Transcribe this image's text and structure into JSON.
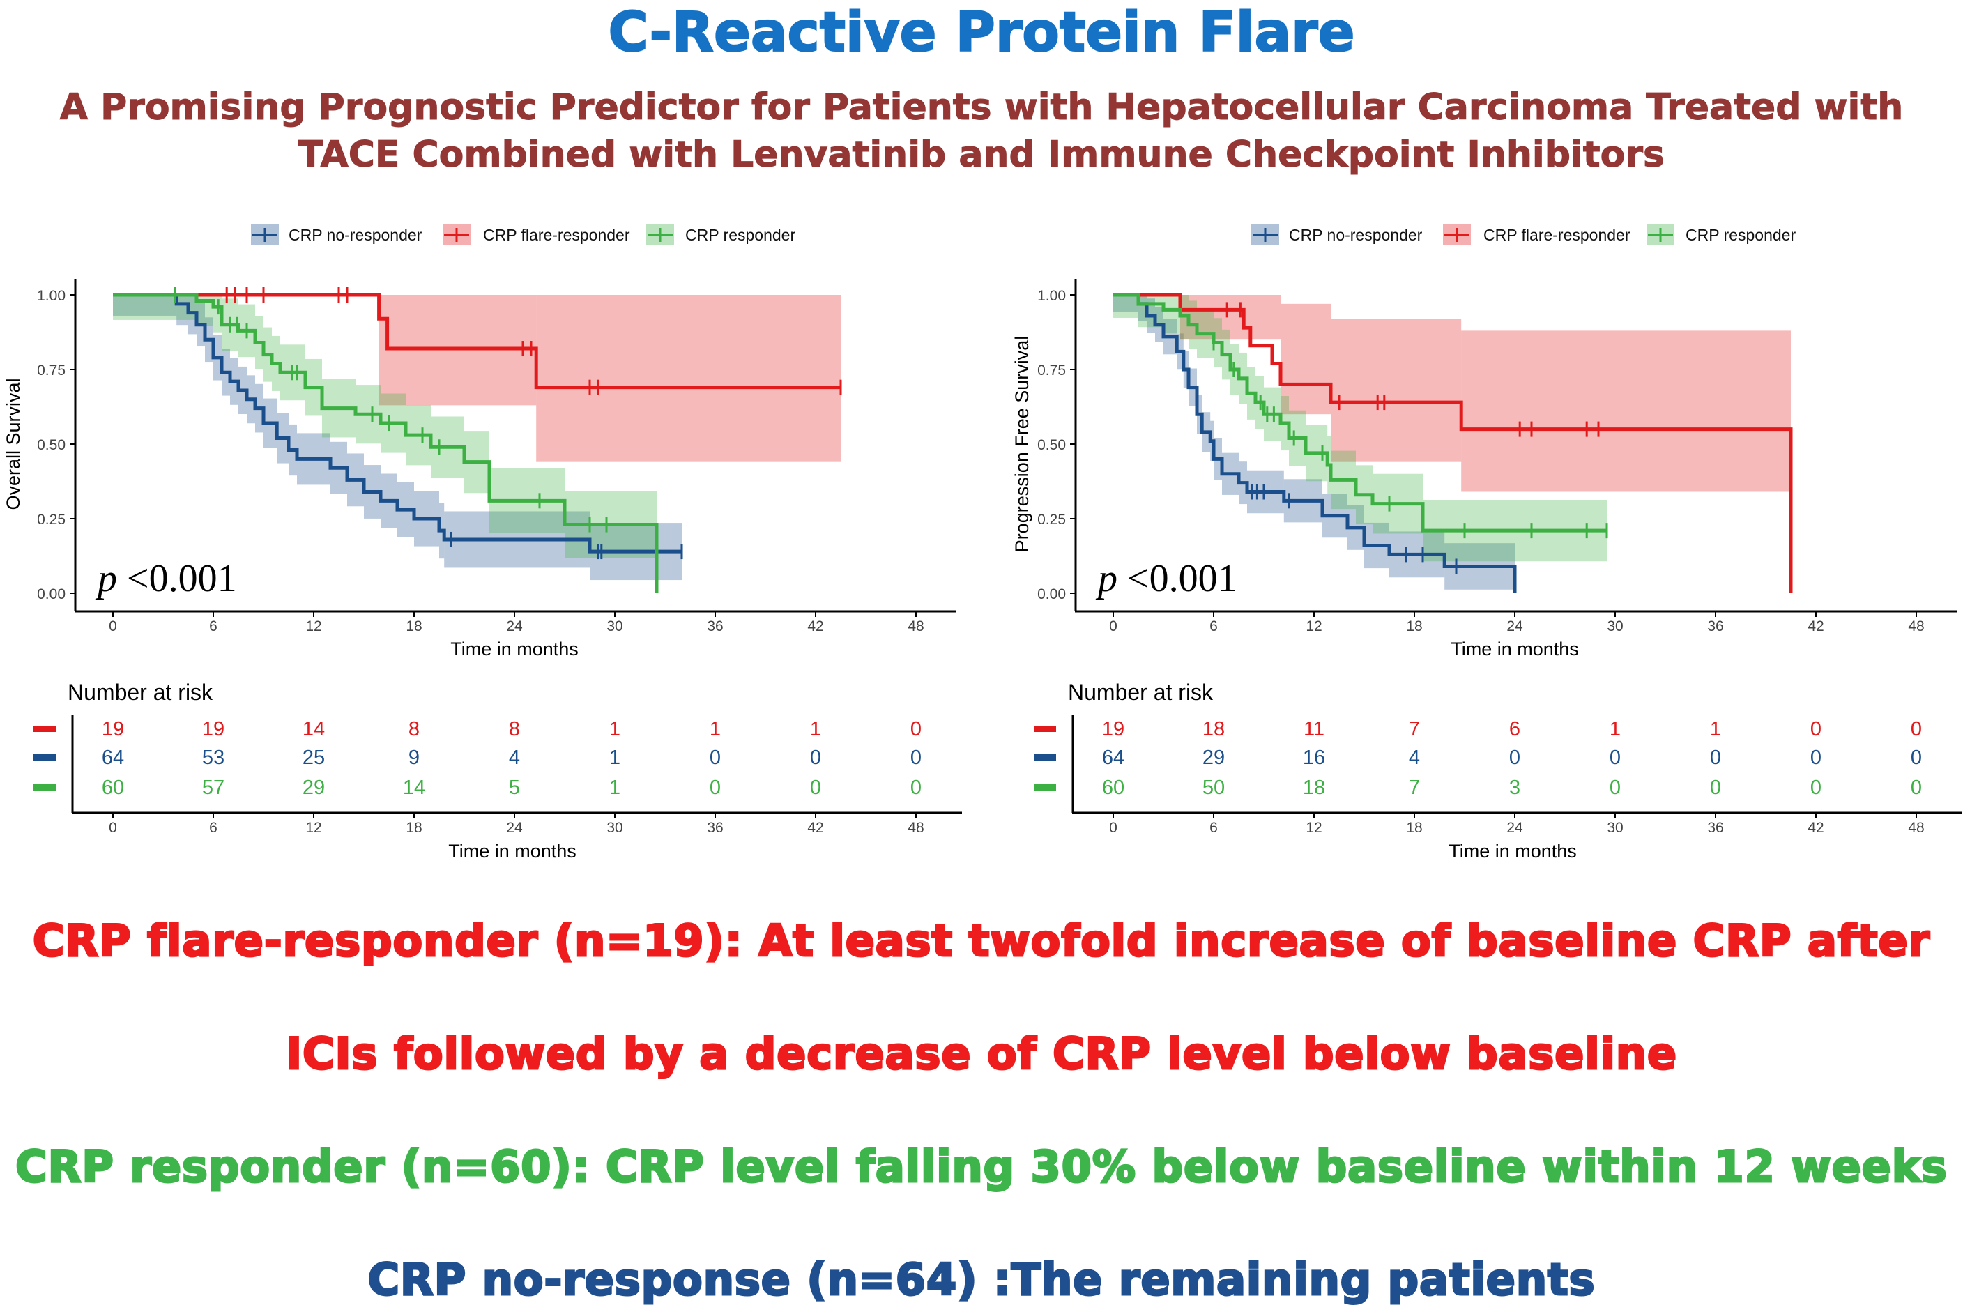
{
  "header": {
    "title": "C-Reactive Protein Flare",
    "subtitle_line1": "A Promising Prognostic Predictor for Patients with Hepatocellular Carcinoma  Treated with",
    "subtitle_line2": "TACE Combined with Lenvatinib and Immune Checkpoint Inhibitors"
  },
  "footer": {
    "line1": "CRP flare-responder (n=19): At least twofold increase of baseline CRP after",
    "line2": "ICIs  followed by a decrease of  CRP level below baseline",
    "line3": "CRP responder (n=60): CRP level falling 30% below baseline within 12 weeks",
    "line4": "CRP no-response (n=64) :The remaining patients"
  },
  "colors": {
    "flare": "#e31a1c",
    "no": "#1a4f8b",
    "resp": "#3cb043"
  },
  "chart_data": [
    {
      "type": "line",
      "subtype": "kaplan-meier",
      "ylabel": "Overall Survival",
      "xlabel": "Time in months",
      "xlim": [
        0,
        48
      ],
      "ylim": [
        0,
        1
      ],
      "xticks": [
        "0",
        "6",
        "12",
        "18",
        "24",
        "30",
        "36",
        "42",
        "48"
      ],
      "yticks": [
        "0.00",
        "0.25",
        "0.50",
        "0.75",
        "1.00"
      ],
      "p_label": "p",
      "p_value": "<0.001",
      "legend": [
        "CRP  no-responder",
        "CRP flare-responder",
        "CRP responder"
      ],
      "series": [
        {
          "name": "CRP  no-responder",
          "key": "no",
          "ci": 0.1,
          "end": 34,
          "steps": [
            [
              0,
              1
            ],
            [
              3.8,
              0.97
            ],
            [
              4.5,
              0.94
            ],
            [
              5,
              0.9
            ],
            [
              5.5,
              0.85
            ],
            [
              6,
              0.79
            ],
            [
              6.5,
              0.74
            ],
            [
              7,
              0.71
            ],
            [
              7.5,
              0.68
            ],
            [
              8,
              0.65
            ],
            [
              8.5,
              0.62
            ],
            [
              9,
              0.57
            ],
            [
              9.8,
              0.52
            ],
            [
              10.5,
              0.48
            ],
            [
              11,
              0.45
            ],
            [
              13,
              0.42
            ],
            [
              14,
              0.38
            ],
            [
              15,
              0.34
            ],
            [
              16,
              0.31
            ],
            [
              17,
              0.28
            ],
            [
              18,
              0.25
            ],
            [
              19.5,
              0.21
            ],
            [
              19.8,
              0.18
            ],
            [
              28.5,
              0.14
            ]
          ],
          "censored": [
            20.2,
            29,
            29.2,
            34
          ]
        },
        {
          "name": "CRP flare-responder",
          "key": "flare",
          "ci": 0.0,
          "end": 43.5,
          "steps": [
            [
              0,
              1
            ],
            [
              15.9,
              0.92
            ],
            [
              16.4,
              0.82
            ],
            [
              25.3,
              0.69
            ]
          ],
          "band": [
            [
              15.9,
              0.63,
              1
            ],
            [
              25.3,
              0.44,
              1
            ]
          ],
          "censored": [
            6.8,
            7.3,
            8,
            9,
            13.5,
            14,
            24.5,
            25,
            28.5,
            29,
            43.5
          ]
        },
        {
          "name": "CRP responder",
          "key": "resp",
          "ci": 0.12,
          "end": 32.5,
          "steps": [
            [
              0,
              1
            ],
            [
              5,
              0.98
            ],
            [
              6,
              0.96
            ],
            [
              6.5,
              0.9
            ],
            [
              7.5,
              0.88
            ],
            [
              8.5,
              0.84
            ],
            [
              9,
              0.8
            ],
            [
              9.5,
              0.77
            ],
            [
              10,
              0.74
            ],
            [
              11.5,
              0.69
            ],
            [
              12.5,
              0.62
            ],
            [
              14.5,
              0.6
            ],
            [
              16,
              0.57
            ],
            [
              17.5,
              0.53
            ],
            [
              19,
              0.49
            ],
            [
              21,
              0.44
            ],
            [
              22.5,
              0.31
            ],
            [
              27,
              0.23
            ],
            [
              32.5,
              0
            ]
          ],
          "censored": [
            3.7,
            6.3,
            7,
            7.4,
            8,
            10.7,
            11,
            15.5,
            16.5,
            18.5,
            19.5,
            25.5,
            28.5,
            29.5
          ]
        }
      ]
    },
    {
      "type": "line",
      "subtype": "kaplan-meier",
      "ylabel": "Progression Free Survival",
      "xlabel": "Time in months",
      "xlim": [
        0,
        48
      ],
      "ylim": [
        0,
        1
      ],
      "xticks": [
        "0",
        "6",
        "12",
        "18",
        "24",
        "30",
        "36",
        "42",
        "48"
      ],
      "yticks": [
        "0.00",
        "0.25",
        "0.50",
        "0.75",
        "1.00"
      ],
      "p_label": "p",
      "p_value": "<0.001",
      "legend": [
        "CRP  no-responder",
        "CRP flare-responder",
        "CRP responder"
      ],
      "series": [
        {
          "name": "CRP  no-responder",
          "key": "no",
          "ci": 0.08,
          "end": 24,
          "steps": [
            [
              0,
              1
            ],
            [
              1.5,
              0.97
            ],
            [
              2,
              0.93
            ],
            [
              2.5,
              0.9
            ],
            [
              3,
              0.86
            ],
            [
              3.8,
              0.81
            ],
            [
              4.2,
              0.75
            ],
            [
              4.5,
              0.69
            ],
            [
              5,
              0.6
            ],
            [
              5.3,
              0.54
            ],
            [
              5.8,
              0.51
            ],
            [
              6,
              0.45
            ],
            [
              6.5,
              0.4
            ],
            [
              7.5,
              0.37
            ],
            [
              8,
              0.34
            ],
            [
              10.2,
              0.31
            ],
            [
              12.5,
              0.26
            ],
            [
              14,
              0.22
            ],
            [
              15,
              0.16
            ],
            [
              16.5,
              0.13
            ],
            [
              19.8,
              0.09
            ],
            [
              24,
              0
            ]
          ],
          "censored": [
            8.3,
            8.6,
            9,
            10.5,
            17.5,
            18.5,
            20.5
          ]
        },
        {
          "name": "CRP flare-responder",
          "key": "flare",
          "ci": 0.0,
          "end": 40.5,
          "steps": [
            [
              0,
              1
            ],
            [
              4,
              0.95
            ],
            [
              7.8,
              0.89
            ],
            [
              8.2,
              0.83
            ],
            [
              9.5,
              0.77
            ],
            [
              10,
              0.7
            ],
            [
              13,
              0.64
            ],
            [
              20.8,
              0.55
            ],
            [
              40.5,
              0
            ]
          ],
          "band": [
            [
              0,
              1,
              1
            ],
            [
              4,
              0.85,
              1
            ],
            [
              10,
              0.6,
              0.97
            ],
            [
              13,
              0.44,
              0.92
            ],
            [
              20.8,
              0.34,
              0.88
            ]
          ],
          "censored": [
            6.8,
            7.6,
            13.5,
            15.8,
            16.2,
            24.3,
            25,
            28.3,
            29
          ]
        },
        {
          "name": "CRP responder",
          "key": "resp",
          "ci": 0.11,
          "end": 29.5,
          "steps": [
            [
              0,
              1
            ],
            [
              1.5,
              0.97
            ],
            [
              3,
              0.95
            ],
            [
              4,
              0.93
            ],
            [
              4.5,
              0.9
            ],
            [
              5,
              0.87
            ],
            [
              6,
              0.84
            ],
            [
              6.5,
              0.8
            ],
            [
              7,
              0.75
            ],
            [
              7.5,
              0.72
            ],
            [
              8,
              0.67
            ],
            [
              8.5,
              0.64
            ],
            [
              9,
              0.6
            ],
            [
              10,
              0.57
            ],
            [
              10.5,
              0.52
            ],
            [
              11.5,
              0.47
            ],
            [
              12.8,
              0.43
            ],
            [
              13,
              0.38
            ],
            [
              14.5,
              0.33
            ],
            [
              15.5,
              0.3
            ],
            [
              18.5,
              0.21
            ]
          ],
          "censored": [
            6,
            7.2,
            8.8,
            9.2,
            9.6,
            10.8,
            12.5,
            16.5,
            21,
            25,
            28.3,
            29.5
          ]
        }
      ]
    }
  ],
  "risk_tables": [
    {
      "title": "Number at risk",
      "xlabel": "Time in months",
      "rows": [
        {
          "key": "flare",
          "values": [
            "19",
            "19",
            "14",
            "8",
            "8",
            "1",
            "1",
            "1",
            "0"
          ]
        },
        {
          "key": "no",
          "values": [
            "64",
            "53",
            "25",
            "9",
            "4",
            "1",
            "0",
            "0",
            "0"
          ]
        },
        {
          "key": "resp",
          "values": [
            "60",
            "57",
            "29",
            "14",
            "5",
            "1",
            "0",
            "0",
            "0"
          ]
        }
      ]
    },
    {
      "title": "Number at risk",
      "xlabel": "Time in months",
      "rows": [
        {
          "key": "flare",
          "values": [
            "19",
            "18",
            "11",
            "7",
            "6",
            "1",
            "1",
            "0",
            "0"
          ]
        },
        {
          "key": "no",
          "values": [
            "64",
            "29",
            "16",
            "4",
            "0",
            "0",
            "0",
            "0",
            "0"
          ]
        },
        {
          "key": "resp",
          "values": [
            "60",
            "50",
            "18",
            "7",
            "3",
            "0",
            "0",
            "0",
            "0"
          ]
        }
      ]
    }
  ]
}
